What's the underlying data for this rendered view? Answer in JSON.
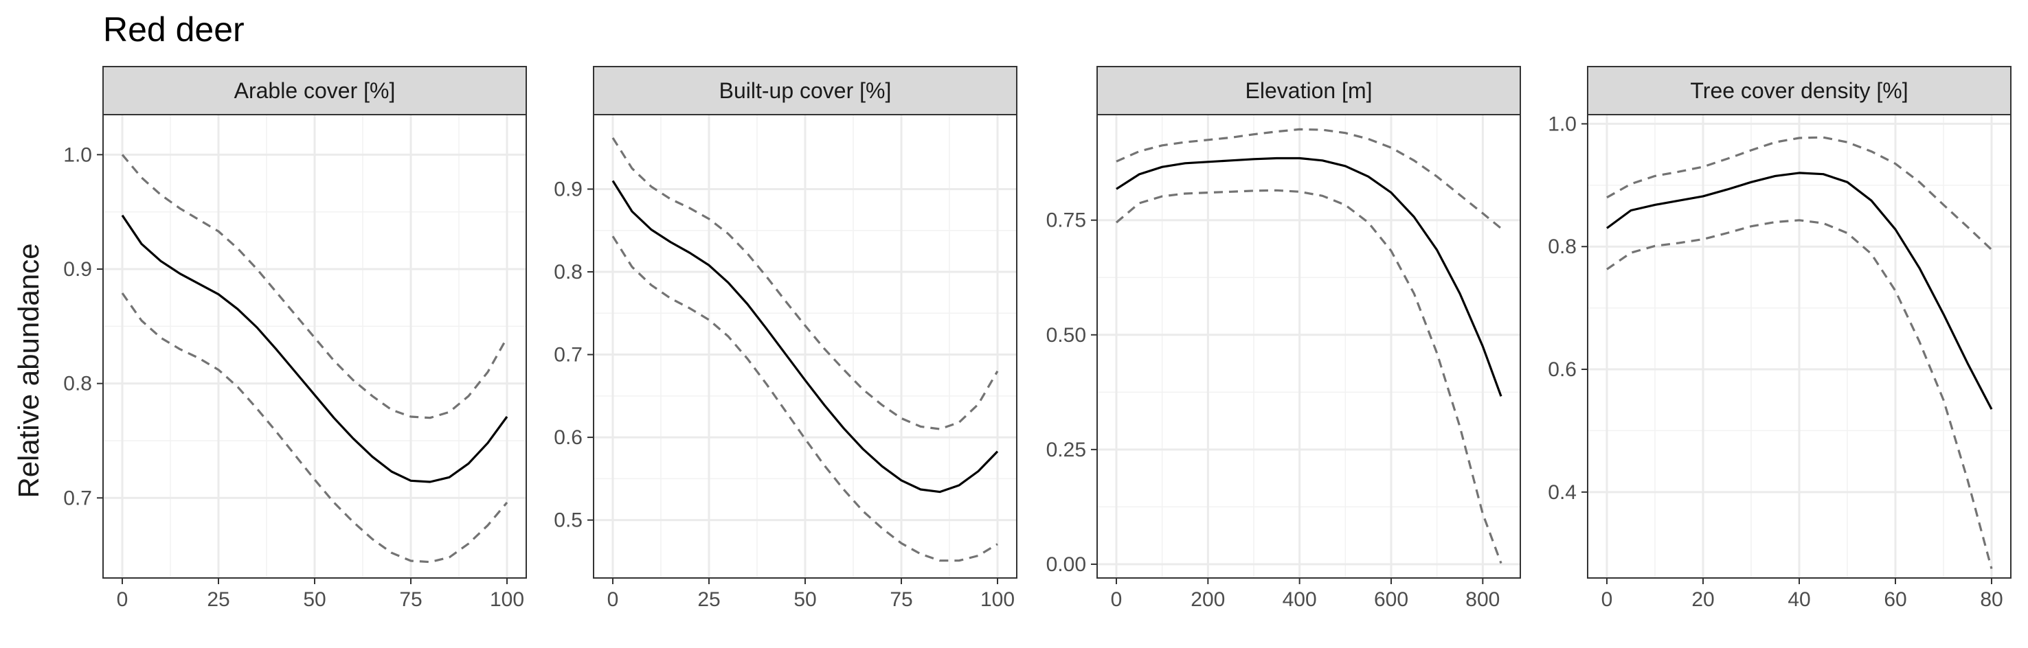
{
  "figure": {
    "title": "Red deer",
    "ylabel": "Relative abundance"
  },
  "chart_data": [
    {
      "type": "line",
      "facet": "Arable cover [%]",
      "xlim": [
        -5,
        105
      ],
      "ylim": [
        0.63,
        1.035
      ],
      "xticks": [
        0,
        25,
        50,
        75,
        100
      ],
      "xtick_labels": [
        "0",
        "25",
        "50",
        "75",
        "100"
      ],
      "yticks": [
        0.7,
        0.8,
        0.9,
        1.0
      ],
      "ytick_labels": [
        "0.7",
        "0.8",
        "0.9",
        "1.0"
      ],
      "grid": true,
      "series": [
        {
          "role": "estimate",
          "style": "solid",
          "color": "#000000",
          "x": [
            0,
            5,
            10,
            15,
            20,
            25,
            30,
            35,
            40,
            45,
            50,
            55,
            60,
            65,
            70,
            75,
            80,
            85,
            90,
            95,
            100
          ],
          "y": [
            0.947,
            0.922,
            0.907,
            0.896,
            0.887,
            0.878,
            0.865,
            0.849,
            0.83,
            0.81,
            0.79,
            0.77,
            0.752,
            0.736,
            0.723,
            0.715,
            0.714,
            0.718,
            0.73,
            0.748,
            0.771
          ]
        },
        {
          "role": "upper",
          "style": "dashed",
          "color": "#737373",
          "x": [
            0,
            5,
            10,
            15,
            20,
            25,
            30,
            35,
            40,
            45,
            50,
            55,
            60,
            65,
            70,
            75,
            80,
            85,
            90,
            95,
            100
          ],
          "y": [
            1.0,
            0.98,
            0.965,
            0.953,
            0.943,
            0.933,
            0.918,
            0.9,
            0.88,
            0.86,
            0.84,
            0.82,
            0.803,
            0.789,
            0.777,
            0.771,
            0.77,
            0.775,
            0.789,
            0.81,
            0.84
          ]
        },
        {
          "role": "lower",
          "style": "dashed",
          "color": "#737373",
          "x": [
            0,
            5,
            10,
            15,
            20,
            25,
            30,
            35,
            40,
            45,
            50,
            55,
            60,
            65,
            70,
            75,
            80,
            85,
            90,
            95,
            100
          ],
          "y": [
            0.879,
            0.855,
            0.84,
            0.83,
            0.822,
            0.812,
            0.797,
            0.778,
            0.758,
            0.737,
            0.716,
            0.696,
            0.679,
            0.664,
            0.652,
            0.645,
            0.644,
            0.648,
            0.66,
            0.676,
            0.696
          ]
        }
      ]
    },
    {
      "type": "line",
      "facet": "Built-up cover [%]",
      "xlim": [
        -5,
        105
      ],
      "ylim": [
        0.43,
        0.99
      ],
      "xticks": [
        0,
        25,
        50,
        75,
        100
      ],
      "xtick_labels": [
        "0",
        "25",
        "50",
        "75",
        "100"
      ],
      "yticks": [
        0.5,
        0.6,
        0.7,
        0.8,
        0.9
      ],
      "ytick_labels": [
        "0.5",
        "0.6",
        "0.7",
        "0.8",
        "0.9"
      ],
      "grid": true,
      "series": [
        {
          "role": "estimate",
          "style": "solid",
          "color": "#000000",
          "x": [
            0,
            5,
            10,
            15,
            20,
            25,
            30,
            35,
            40,
            45,
            50,
            55,
            60,
            65,
            70,
            75,
            80,
            85,
            90,
            95,
            100
          ],
          "y": [
            0.91,
            0.873,
            0.851,
            0.836,
            0.823,
            0.808,
            0.787,
            0.761,
            0.731,
            0.7,
            0.669,
            0.639,
            0.611,
            0.586,
            0.565,
            0.548,
            0.537,
            0.534,
            0.542,
            0.559,
            0.583
          ]
        },
        {
          "role": "upper",
          "style": "dashed",
          "color": "#737373",
          "x": [
            0,
            5,
            10,
            15,
            20,
            25,
            30,
            35,
            40,
            45,
            50,
            55,
            60,
            65,
            70,
            75,
            80,
            85,
            90,
            95,
            100
          ],
          "y": [
            0.962,
            0.925,
            0.903,
            0.888,
            0.877,
            0.864,
            0.846,
            0.822,
            0.794,
            0.764,
            0.735,
            0.707,
            0.682,
            0.658,
            0.639,
            0.623,
            0.613,
            0.61,
            0.618,
            0.64,
            0.68
          ]
        },
        {
          "role": "lower",
          "style": "dashed",
          "color": "#737373",
          "x": [
            0,
            5,
            10,
            15,
            20,
            25,
            30,
            35,
            40,
            45,
            50,
            55,
            60,
            65,
            70,
            75,
            80,
            85,
            90,
            95,
            100
          ],
          "y": [
            0.843,
            0.806,
            0.784,
            0.768,
            0.756,
            0.742,
            0.722,
            0.695,
            0.664,
            0.631,
            0.598,
            0.566,
            0.537,
            0.511,
            0.49,
            0.472,
            0.459,
            0.451,
            0.451,
            0.457,
            0.471
          ]
        }
      ]
    },
    {
      "type": "line",
      "facet": "Elevation [m]",
      "xlim": [
        -42,
        882
      ],
      "ylim": [
        -0.03,
        0.98
      ],
      "xticks": [
        0,
        200,
        400,
        600,
        800
      ],
      "xtick_labels": [
        "0",
        "200",
        "400",
        "600",
        "800"
      ],
      "yticks": [
        0.0,
        0.25,
        0.5,
        0.75
      ],
      "ytick_labels": [
        "0.00",
        "0.25",
        "0.50",
        "0.75"
      ],
      "grid": true,
      "series": [
        {
          "role": "estimate",
          "style": "solid",
          "color": "#000000",
          "x": [
            0,
            50,
            100,
            150,
            200,
            250,
            300,
            350,
            400,
            450,
            500,
            550,
            600,
            650,
            700,
            750,
            800,
            840
          ],
          "y": [
            0.818,
            0.85,
            0.866,
            0.874,
            0.877,
            0.88,
            0.883,
            0.885,
            0.885,
            0.88,
            0.868,
            0.845,
            0.81,
            0.757,
            0.685,
            0.59,
            0.475,
            0.366
          ]
        },
        {
          "role": "upper",
          "style": "dashed",
          "color": "#737373",
          "x": [
            0,
            50,
            100,
            150,
            200,
            250,
            300,
            350,
            400,
            450,
            500,
            550,
            600,
            650,
            700,
            750,
            800,
            840
          ],
          "y": [
            0.878,
            0.9,
            0.913,
            0.92,
            0.925,
            0.93,
            0.937,
            0.943,
            0.948,
            0.947,
            0.94,
            0.927,
            0.908,
            0.88,
            0.845,
            0.805,
            0.765,
            0.732
          ]
        },
        {
          "role": "lower",
          "style": "dashed",
          "color": "#737373",
          "x": [
            0,
            50,
            100,
            150,
            200,
            250,
            300,
            350,
            400,
            450,
            500,
            550,
            600,
            650,
            700,
            750,
            800,
            840
          ],
          "y": [
            0.745,
            0.787,
            0.802,
            0.808,
            0.81,
            0.812,
            0.814,
            0.815,
            0.812,
            0.803,
            0.783,
            0.745,
            0.683,
            0.59,
            0.46,
            0.3,
            0.11,
            0.002
          ]
        }
      ]
    },
    {
      "type": "line",
      "facet": "Tree cover density [%]",
      "xlim": [
        -4,
        84
      ],
      "ylim": [
        0.26,
        1.015
      ],
      "xticks": [
        0,
        20,
        40,
        60,
        80
      ],
      "xtick_labels": [
        "0",
        "20",
        "40",
        "60",
        "80"
      ],
      "yticks": [
        0.4,
        0.6,
        0.8,
        1.0
      ],
      "ytick_labels": [
        "0.4",
        "0.6",
        "0.8",
        "1.0"
      ],
      "grid": true,
      "series": [
        {
          "role": "estimate",
          "style": "solid",
          "color": "#000000",
          "x": [
            0,
            5,
            10,
            15,
            20,
            25,
            30,
            35,
            40,
            45,
            50,
            55,
            60,
            65,
            70,
            75,
            80
          ],
          "y": [
            0.83,
            0.859,
            0.868,
            0.875,
            0.882,
            0.893,
            0.905,
            0.915,
            0.92,
            0.918,
            0.905,
            0.875,
            0.828,
            0.765,
            0.69,
            0.61,
            0.535
          ]
        },
        {
          "role": "upper",
          "style": "dashed",
          "color": "#737373",
          "x": [
            0,
            5,
            10,
            15,
            20,
            25,
            30,
            35,
            40,
            45,
            50,
            55,
            60,
            65,
            70,
            75,
            80
          ],
          "y": [
            0.88,
            0.902,
            0.915,
            0.922,
            0.93,
            0.943,
            0.957,
            0.97,
            0.977,
            0.978,
            0.97,
            0.955,
            0.935,
            0.905,
            0.868,
            0.832,
            0.795
          ]
        },
        {
          "role": "lower",
          "style": "dashed",
          "color": "#737373",
          "x": [
            0,
            5,
            10,
            15,
            20,
            25,
            30,
            35,
            40,
            45,
            50,
            55,
            60,
            65,
            70,
            75,
            80
          ],
          "y": [
            0.763,
            0.79,
            0.801,
            0.806,
            0.812,
            0.822,
            0.833,
            0.84,
            0.843,
            0.838,
            0.822,
            0.788,
            0.728,
            0.645,
            0.55,
            0.42,
            0.275
          ]
        }
      ]
    }
  ]
}
